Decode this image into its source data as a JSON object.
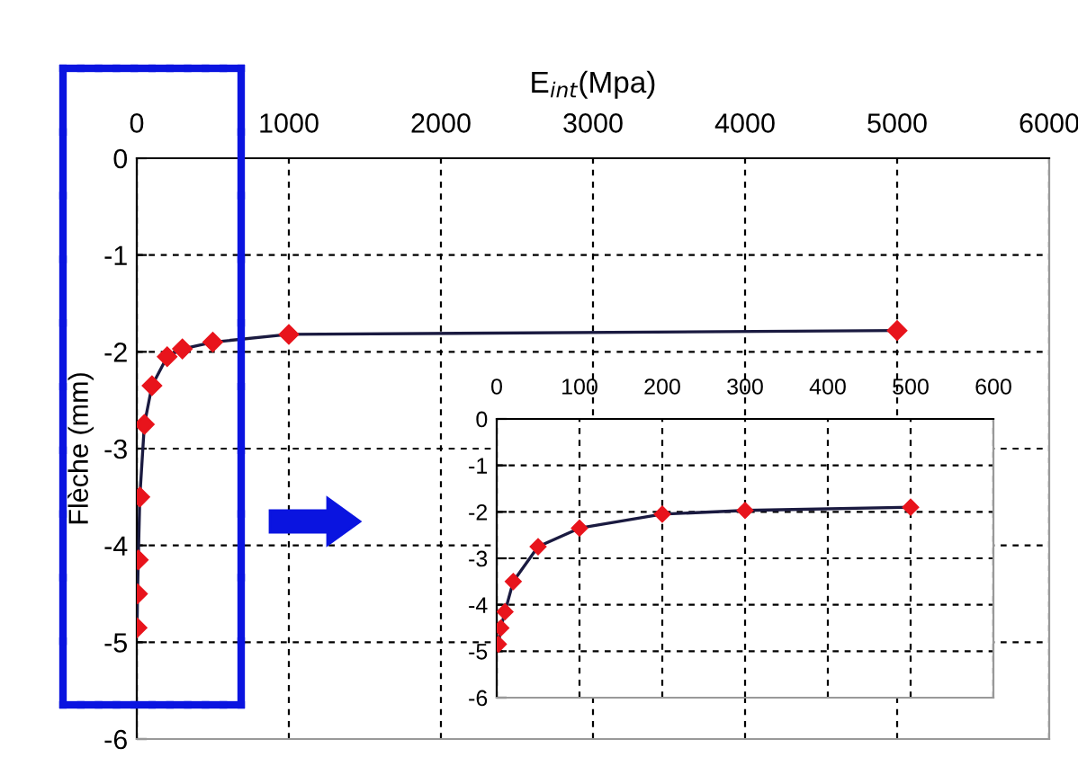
{
  "chart_data": [
    {
      "type": "line",
      "xlabel": "E$_{int}$(Mpa)",
      "ylabel": "Flèche (mm)",
      "x": [
        2,
        5,
        10,
        20,
        50,
        100,
        200,
        300,
        500,
        1000,
        5000
      ],
      "series": [
        {
          "color": "#e8141c",
          "values": [
            -4.85,
            -4.5,
            -4.15,
            -3.5,
            -2.75,
            -2.35,
            -2.05,
            -1.97,
            -1.9,
            -1.82,
            -1.78
          ]
        }
      ],
      "xlim": [
        0,
        6000
      ],
      "xticks": [
        0,
        1000,
        2000,
        3000,
        4000,
        5000,
        6000
      ],
      "ylim": [
        -6,
        0
      ],
      "yticks": [
        -6,
        -5,
        -4,
        -3,
        -2,
        -1,
        0
      ],
      "grid": true,
      "legend": false,
      "marker": "diamond",
      "line_style": "solid"
    },
    {
      "type": "line",
      "x": [
        2,
        5,
        10,
        20,
        50,
        100,
        200,
        300,
        500
      ],
      "series": [
        {
          "color": "#e8141c",
          "values": [
            -4.85,
            -4.5,
            -4.15,
            -3.5,
            -2.75,
            -2.35,
            -2.05,
            -1.97,
            -1.9
          ]
        }
      ],
      "xlim": [
        0,
        600
      ],
      "xticks": [
        0,
        100,
        200,
        300,
        400,
        500,
        600
      ],
      "ylim": [
        -6,
        0
      ],
      "yticks": [
        -6,
        -5,
        -4,
        -3,
        -2,
        -1,
        0
      ],
      "grid": true,
      "legend": false,
      "marker": "diamond",
      "line_style": "solid"
    }
  ]
}
